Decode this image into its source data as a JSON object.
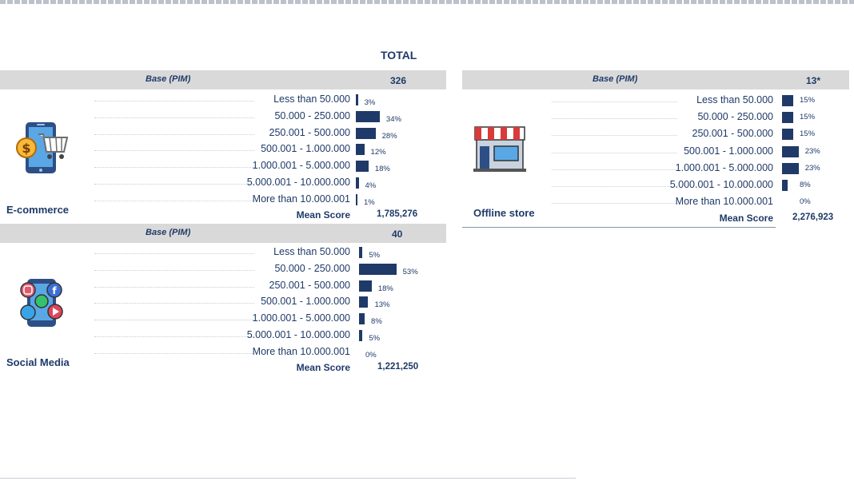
{
  "header": {
    "title": "TOTAL"
  },
  "chart_data": [
    {
      "type": "bar",
      "name": "E-commerce",
      "base_label": "Base (PIM)",
      "base": "326",
      "categories": [
        "Less than 50.000",
        "50.000 - 250.000",
        "250.001 - 500.000",
        "500.001 - 1.000.000",
        "1.000.001 - 5.000.000",
        "5.000.001 - 10.000.000",
        "More than 10.000.001"
      ],
      "values": [
        3,
        34,
        28,
        12,
        18,
        4,
        1
      ],
      "labels": [
        "3%",
        "34%",
        "28%",
        "12%",
        "18%",
        "4%",
        "1%"
      ],
      "mean_label": "Mean Score",
      "mean": "1,785,276",
      "color": "#1f3a68"
    },
    {
      "type": "bar",
      "name": "Social Media",
      "base_label": "Base (PIM)",
      "base": "40",
      "categories": [
        "Less than 50.000",
        "50.000 - 250.000",
        "250.001 - 500.000",
        "500.001 - 1.000.000",
        "1.000.001 - 5.000.000",
        "5.000.001 - 10.000.000",
        "More than 10.000.001"
      ],
      "values": [
        5,
        53,
        18,
        13,
        8,
        5,
        0
      ],
      "labels": [
        "5%",
        "53%",
        "18%",
        "13%",
        "8%",
        "5%",
        "0%"
      ],
      "mean_label": "Mean Score",
      "mean": "1,221,250",
      "color": "#1f3a68"
    },
    {
      "type": "bar",
      "name": "Offline store",
      "base_label": "Base (PIM)",
      "base": "13*",
      "categories": [
        "Less than 50.000",
        "50.000 - 250.000",
        "250.001 - 500.000",
        "500.001 - 1.000.000",
        "1.000.001 - 5.000.000",
        "5.000.001 - 10.000.000",
        "More than 10.000.001"
      ],
      "values": [
        15,
        15,
        15,
        23,
        23,
        8,
        0
      ],
      "labels": [
        "15%",
        "15%",
        "15%",
        "23%",
        "23%",
        "8%",
        "0%"
      ],
      "mean_label": "Mean Score",
      "mean": "2,276,923",
      "color": "#1f3a68"
    }
  ],
  "icons": {
    "ecommerce": "phone-shopping-cart-icon",
    "social": "phone-social-media-icon",
    "offline": "storefront-icon"
  }
}
